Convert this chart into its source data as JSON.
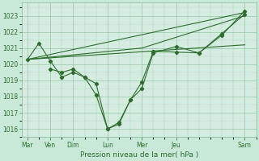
{
  "background_color": "#c8e8d8",
  "plot_bg": "#cceedd",
  "grid_color": "#88bb99",
  "line_color": "#2d6e2d",
  "xlabel": "Pression niveau de la mer( hPa )",
  "ylim": [
    1015.5,
    1023.8
  ],
  "yticks": [
    1016,
    1017,
    1018,
    1019,
    1020,
    1021,
    1022,
    1023
  ],
  "day_labels": [
    "Mar",
    "Ven",
    "Dim",
    "Lun",
    "Mer",
    "Jeu",
    "Sam"
  ],
  "day_x": [
    0,
    2,
    4,
    7,
    10,
    13,
    19
  ],
  "xlim": [
    -0.5,
    20.0
  ],
  "trend1_x": [
    0,
    19
  ],
  "trend1_y": [
    1020.3,
    1021.2
  ],
  "trend2_x": [
    0,
    19
  ],
  "trend2_y": [
    1020.3,
    1023.2
  ],
  "trend3_x": [
    0,
    10,
    19
  ],
  "trend3_y": [
    1020.3,
    1021.0,
    1023.0
  ],
  "zigzag1_x": [
    0,
    1,
    2,
    3,
    4,
    5,
    6,
    7,
    8,
    9,
    10,
    11,
    13,
    15,
    17,
    19
  ],
  "zigzag1_y": [
    1020.3,
    1021.3,
    1020.2,
    1019.2,
    1019.5,
    1019.2,
    1018.1,
    1016.0,
    1016.3,
    1017.8,
    1018.5,
    1020.7,
    1021.1,
    1020.7,
    1021.8,
    1023.3
  ],
  "zigzag2_x": [
    2,
    3,
    4,
    5,
    6,
    7,
    8,
    9,
    10,
    11,
    13,
    15,
    17,
    19
  ],
  "zigzag2_y": [
    1019.7,
    1019.5,
    1019.7,
    1019.2,
    1018.8,
    1016.0,
    1016.4,
    1017.8,
    1018.9,
    1020.8,
    1020.75,
    1020.7,
    1021.9,
    1023.1
  ]
}
